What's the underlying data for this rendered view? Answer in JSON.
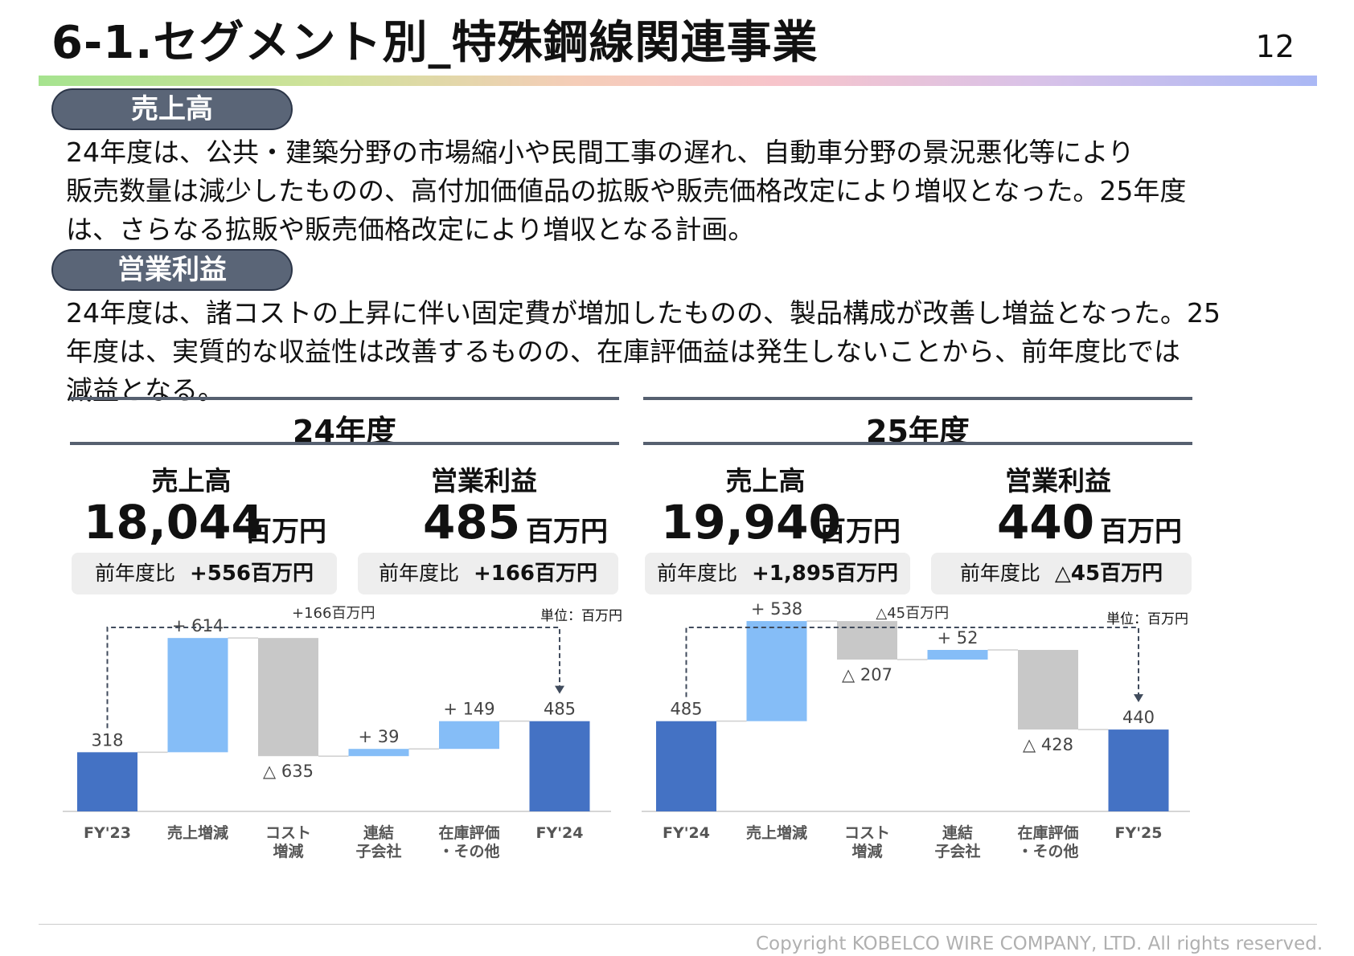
{
  "header": {
    "title": "6-1.セグメント別_特殊鋼線関連事業",
    "page": "12"
  },
  "sections": [
    {
      "label": "売上高",
      "text": "24年度は、公共・建築分野の市場縮小や民間工事の遅れ、自動車分野の景況悪化等により\n販売数量は減少したものの、高付加価値品の拡販や販売価格改定により増収となった。25年度\nは、さらなる拡販や販売価格改定により増収となる計画。"
    },
    {
      "label": "営業利益",
      "text": "24年度は、諸コストの上昇に伴い固定費が増加したものの、製品構成が改善し増益となった。25\n年度は、実質的な収益性は改善するものの、在庫評価益は発生しないことから、前年度比では\n減益となる。"
    }
  ],
  "panels": [
    {
      "title": "24年度",
      "kpis": [
        {
          "label": "売上高",
          "value": "18,044",
          "unit": "百万円",
          "yoy_label": "前年度比",
          "yoy_value": "+556百万円"
        },
        {
          "label": "営業利益",
          "value": "485",
          "unit": "百万円",
          "yoy_label": "前年度比",
          "yoy_value": "+166百万円"
        }
      ],
      "unit_note": "単位：百万円",
      "bridge_label": "+166百万円"
    },
    {
      "title": "25年度",
      "kpis": [
        {
          "label": "売上高",
          "value": "19,940",
          "unit": "百万円",
          "yoy_label": "前年度比",
          "yoy_value": "+1,895百万円"
        },
        {
          "label": "営業利益",
          "value": "440",
          "unit": "百万円",
          "yoy_label": "前年度比",
          "yoy_value": "△45百万円"
        }
      ],
      "unit_note": "単位：百万円",
      "bridge_label": "△45百万円"
    }
  ],
  "colors": {
    "total": "#4472c4",
    "increase": "#85bdf7",
    "decrease": "#c8c8c8",
    "connector": "#404b5c"
  },
  "chart_data": [
    {
      "type": "bar",
      "subtype": "waterfall",
      "categories": [
        "FY'23",
        "売上増減",
        "コスト\n増減",
        "連結\n子会社",
        "在庫評価\n・その他",
        "FY'24"
      ],
      "kinds": [
        "total",
        "increase",
        "decrease",
        "increase",
        "increase",
        "total"
      ],
      "values": [
        318,
        614,
        -635,
        39,
        149,
        485
      ],
      "data_labels": [
        "318",
        "+ 614",
        "△ 635",
        "+ 39",
        "+ 149",
        "485"
      ],
      "bridge_label": "+166百万円",
      "ylim": [
        0,
        950
      ]
    },
    {
      "type": "bar",
      "subtype": "waterfall",
      "categories": [
        "FY'24",
        "売上増減",
        "コスト\n増減",
        "連結\n子会社",
        "在庫評価\n・その他",
        "FY'25"
      ],
      "kinds": [
        "total",
        "increase",
        "decrease",
        "increase",
        "decrease",
        "total"
      ],
      "values": [
        485,
        538,
        -207,
        52,
        -428,
        440
      ],
      "data_labels": [
        "485",
        "+ 538",
        "△ 207",
        "+ 52",
        "△ 428",
        "440"
      ],
      "bridge_label": "△45百万円",
      "ylim": [
        0,
        950
      ]
    }
  ],
  "footer": {
    "copyright": "Copyright  KOBELCO WIRE COMPANY, LTD. All rights reserved."
  }
}
